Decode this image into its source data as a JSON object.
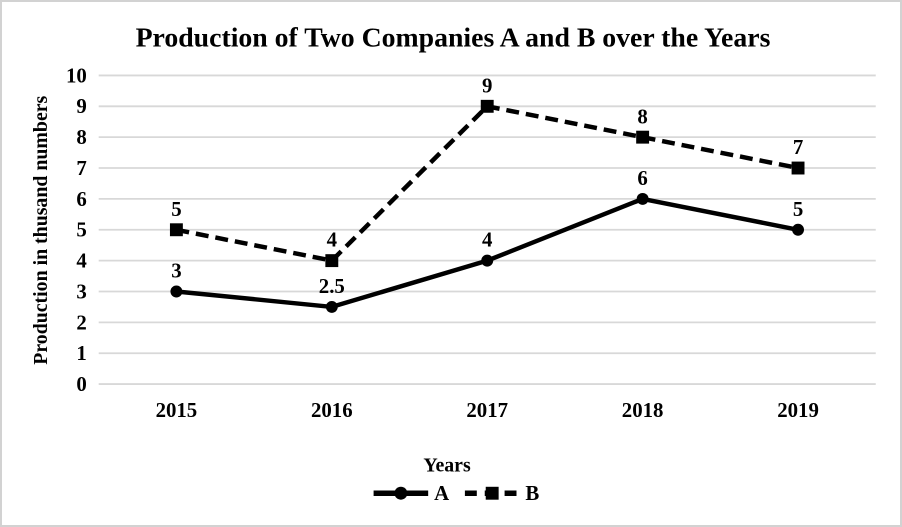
{
  "page": {
    "background": "#ffffff",
    "border_color": "#d2d2d2"
  },
  "chart_data": {
    "type": "line",
    "title": "Production of Two Companies A and B over the Years",
    "xlabel": "Years",
    "ylabel": "Production in thusand numbers",
    "categories": [
      "2015",
      "2016",
      "2017",
      "2018",
      "2019"
    ],
    "series": [
      {
        "name": "A",
        "values": [
          3,
          2.5,
          4,
          6,
          5
        ],
        "line_style": "solid",
        "marker": "circle",
        "color": "#000000"
      },
      {
        "name": "B",
        "values": [
          5,
          4,
          9,
          8,
          7
        ],
        "line_style": "dashed",
        "marker": "square",
        "color": "#000000"
      }
    ],
    "ylim": [
      0,
      10
    ],
    "ytick_step": 1,
    "grid": "horizontal",
    "gridline_color": "#d8d8d8",
    "text_color": "#000000",
    "legend_position": "bottom",
    "data_labels": true
  }
}
